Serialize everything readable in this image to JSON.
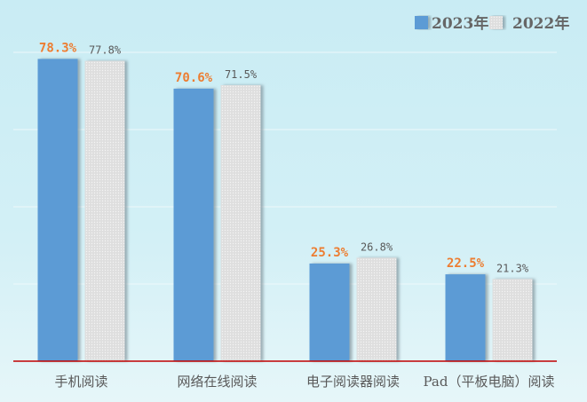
{
  "chart_data": {
    "type": "bar",
    "categories": [
      "手机阅读",
      "网络在线阅读",
      "电子阅读器阅读",
      "Pad（平板电脑）阅读"
    ],
    "series": [
      {
        "name": "2023年",
        "values": [
          78.3,
          70.6,
          25.3,
          22.5
        ],
        "labels": [
          "78.3%",
          "70.6%",
          "25.3%",
          "22.5%"
        ],
        "color": "#5b9bd5",
        "label_color": "#ed7d31"
      },
      {
        "name": "2022年",
        "values": [
          77.8,
          71.5,
          26.8,
          21.3
        ],
        "labels": [
          "77.8%",
          "71.5%",
          "26.8%",
          "21.3%"
        ],
        "color": "#e4e4e4",
        "label_color": "#595959"
      }
    ],
    "ylim": [
      0,
      80
    ],
    "grid": true,
    "legend": "top-right",
    "axis_color": "#c00000"
  }
}
